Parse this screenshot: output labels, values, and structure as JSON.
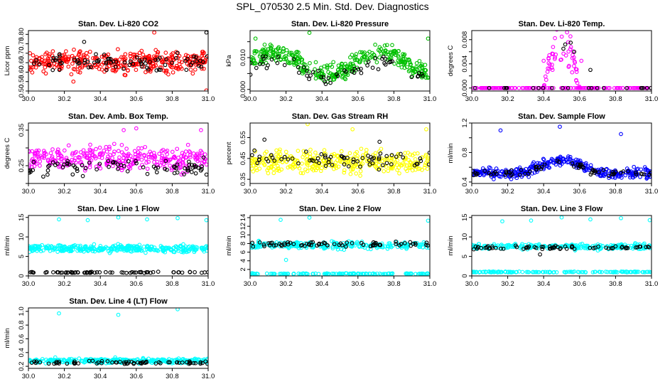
{
  "figure": {
    "title": "SPL_070530  2.5 Min. Std. Dev. Diagnostics",
    "colors": {
      "red": "#ff0000",
      "green": "#00c000",
      "magenta": "#ff00ff",
      "yellow": "#ffff00",
      "blue": "#0000ff",
      "cyan": "#00ffff",
      "black": "#000000"
    }
  },
  "chart_data": [
    {
      "id": "co2",
      "type": "scatter",
      "title": "Stan. Dev. Li-820 CO2",
      "ylabel": "Licor ppm",
      "xlim": [
        30.0,
        31.0
      ],
      "ylim": [
        0.5,
        0.82
      ],
      "xticks": [
        30.0,
        30.2,
        30.4,
        30.6,
        30.8,
        31.0
      ],
      "xtick_labels": [
        "30.0",
        "30.2",
        "30.4",
        "30.6",
        "30.8",
        "31.0"
      ],
      "yticks": [
        0.5,
        0.55,
        0.6,
        0.65,
        0.7,
        0.75,
        0.8
      ],
      "ytick_labels": [
        "0.50",
        "0.55",
        "0.60",
        "0.65",
        "0.70",
        "0.75",
        "0.80"
      ],
      "series": [
        {
          "name": "main",
          "color": "red",
          "n": 360,
          "level": 0.655,
          "spread": 0.048,
          "outliers": [
            [
              30.99,
              0.503
            ],
            [
              30.7,
              0.81
            ],
            [
              30.25,
              0.55
            ]
          ]
        },
        {
          "name": "highlight",
          "color": "black",
          "n": 80,
          "level": 0.655,
          "spread": 0.035,
          "outliers": [
            [
              30.99,
              0.81
            ],
            [
              30.31,
              0.76
            ]
          ]
        }
      ]
    },
    {
      "id": "pressure",
      "type": "scatter",
      "title": "Stan. Dev. Li-820 Pressure",
      "ylabel": "kPa",
      "xlim": [
        30.0,
        31.0
      ],
      "ylim": [
        -0.0005,
        0.0185
      ],
      "xticks": [
        30.0,
        30.2,
        30.4,
        30.6,
        30.8,
        31.0
      ],
      "xtick_labels": [
        "30.0",
        "30.2",
        "30.4",
        "30.6",
        "30.8",
        "31.0"
      ],
      "yticks": [
        0.0,
        0.005,
        0.01,
        0.015
      ],
      "ytick_labels": [
        "0.000",
        "",
        "0.010",
        ""
      ],
      "series": [
        {
          "name": "main",
          "color": "green",
          "n": 360,
          "wave": [
            0.008,
            0.006,
            0.0025
          ],
          "outliers": [
            [
              30.33,
              0.0178
            ],
            [
              30.99,
              0.016
            ],
            [
              30.03,
              0.016
            ]
          ]
        },
        {
          "name": "highlight",
          "color": "black",
          "n": 60,
          "wave": [
            0.006,
            0.005,
            0.002
          ],
          "outliers": []
        }
      ]
    },
    {
      "id": "temp",
      "type": "scatter",
      "title": "Stan. Dev. Li-820 Temp.",
      "ylabel": "degrees C",
      "xlim": [
        30.0,
        31.0
      ],
      "ylim": [
        -0.0005,
        0.0095
      ],
      "xticks": [
        30.0,
        30.2,
        30.4,
        30.6,
        30.8,
        31.0
      ],
      "xtick_labels": [
        "30.0",
        "30.2",
        "30.4",
        "30.6",
        "30.8",
        "31.0"
      ],
      "yticks": [
        0.0,
        0.002,
        0.004,
        0.006,
        0.008
      ],
      "ytick_labels": [
        "0.000",
        "",
        "0.004",
        "",
        "0.008"
      ],
      "series": [
        {
          "name": "baseline",
          "color": "magenta",
          "n": 150,
          "level": 0.0,
          "spread": 0.0,
          "outliers": []
        },
        {
          "name": "hump",
          "color": "magenta",
          "n": 60,
          "hump": [
            30.4,
            30.6,
            0.009
          ],
          "outliers": [
            [
              30.53,
              0.0092
            ],
            [
              30.4,
              0.0045
            ],
            [
              30.61,
              0.0045
            ]
          ]
        },
        {
          "name": "highlight",
          "color": "black",
          "n": 22,
          "level": 0.0,
          "spread": 0.0,
          "outliers": [
            [
              30.51,
              0.0065
            ],
            [
              30.52,
              0.0072
            ],
            [
              30.55,
              0.0075
            ],
            [
              30.57,
              0.006
            ],
            [
              30.66,
              0.003
            ]
          ]
        }
      ]
    },
    {
      "id": "ambbox",
      "type": "scatter",
      "title": "Stan. Dev. Amb. Box Temp.",
      "ylabel": "degrees C",
      "xlim": [
        30.0,
        31.0
      ],
      "ylim": [
        0.2,
        0.37
      ],
      "xticks": [
        30.0,
        30.2,
        30.4,
        30.6,
        30.8,
        31.0
      ],
      "xtick_labels": [
        "30.0",
        "30.2",
        "30.4",
        "30.6",
        "30.8",
        "31.0"
      ],
      "yticks": [
        0.2,
        0.25,
        0.3,
        0.35
      ],
      "ytick_labels": [
        "",
        "0.25",
        "",
        "0.35"
      ],
      "series": [
        {
          "name": "main",
          "color": "magenta",
          "n": 330,
          "level": 0.27,
          "spread": 0.03,
          "outliers": [
            [
              30.6,
              0.355
            ],
            [
              30.53,
              0.35
            ],
            [
              30.96,
              0.35
            ]
          ]
        },
        {
          "name": "highlight",
          "color": "black",
          "n": 80,
          "level": 0.245,
          "spread": 0.02,
          "outliers": []
        }
      ]
    },
    {
      "id": "rh",
      "type": "scatter",
      "title": "Stan. Dev. Gas Stream RH",
      "ylabel": "percent",
      "xlim": [
        30.0,
        31.0
      ],
      "ylim": [
        0.33,
        0.62
      ],
      "xticks": [
        30.0,
        30.2,
        30.4,
        30.6,
        30.8,
        31.0
      ],
      "xtick_labels": [
        "30.0",
        "30.2",
        "30.4",
        "30.6",
        "30.8",
        "31.0"
      ],
      "yticks": [
        0.35,
        0.45,
        0.55
      ],
      "ytick_labels": [
        "0.35",
        "0.45",
        "0.55"
      ],
      "series": [
        {
          "name": "main",
          "color": "yellow",
          "n": 340,
          "level": 0.435,
          "spread": 0.045,
          "outliers": [
            [
              30.32,
              0.615
            ],
            [
              30.98,
              0.59
            ],
            [
              30.57,
              0.59
            ]
          ]
        },
        {
          "name": "highlight",
          "color": "black",
          "n": 70,
          "level": 0.44,
          "spread": 0.035,
          "outliers": [
            [
              30.08,
              0.54
            ],
            [
              30.72,
              0.53
            ]
          ]
        }
      ]
    },
    {
      "id": "sample",
      "type": "scatter",
      "title": "Stan. Dev. Sample Flow",
      "ylabel": "ml/min",
      "xlim": [
        30.0,
        31.0
      ],
      "ylim": [
        0.38,
        1.2
      ],
      "xticks": [
        30.0,
        30.2,
        30.4,
        30.6,
        30.8,
        31.0
      ],
      "xtick_labels": [
        "30.0",
        "30.2",
        "30.4",
        "30.6",
        "30.8",
        "31.0"
      ],
      "yticks": [
        0.4,
        0.6,
        0.8,
        1.0,
        1.2
      ],
      "ytick_labels": [
        "0.4",
        "",
        "0.8",
        "",
        "1.2"
      ],
      "series": [
        {
          "name": "main",
          "color": "blue",
          "n": 330,
          "hump": [
            30.3,
            30.7,
            0.17
          ],
          "level": 0.52,
          "spread": 0.06,
          "outliers": [
            [
              30.16,
              1.1
            ],
            [
              30.49,
              1.15
            ],
            [
              30.83,
              1.05
            ]
          ]
        },
        {
          "name": "highlight",
          "color": "black",
          "n": 70,
          "hump": [
            30.3,
            30.7,
            0.14
          ],
          "level": 0.52,
          "spread": 0.04,
          "outliers": []
        }
      ]
    },
    {
      "id": "line1",
      "type": "scatter",
      "title": "Stan. Dev. Line 1 Flow",
      "ylabel": "ml/min",
      "xlim": [
        30.0,
        31.0
      ],
      "ylim": [
        0,
        15.5
      ],
      "xticks": [
        30.0,
        30.2,
        30.4,
        30.6,
        30.8,
        31.0
      ],
      "xtick_labels": [
        "30.0",
        "30.2",
        "30.4",
        "30.6",
        "30.8",
        "31.0"
      ],
      "yticks": [
        0,
        5,
        10,
        15
      ],
      "ytick_labels": [
        "0",
        "5",
        "10",
        "15"
      ],
      "series": [
        {
          "name": "main",
          "color": "cyan",
          "n": 330,
          "level": 7.0,
          "spread": 0.8,
          "outliers": [
            [
              30.17,
              14.5
            ],
            [
              30.33,
              14.3
            ],
            [
              30.5,
              15.0
            ],
            [
              30.66,
              14.5
            ],
            [
              30.83,
              14.8
            ],
            [
              30.99,
              14.3
            ]
          ]
        },
        {
          "name": "highlight",
          "color": "black",
          "n": 70,
          "level": 0.9,
          "spread": 0.12,
          "outliers": []
        }
      ]
    },
    {
      "id": "line2",
      "type": "scatter",
      "title": "Stan. Dev. Line 2 Flow",
      "ylabel": "ml/min",
      "xlim": [
        30.0,
        31.0
      ],
      "ylim": [
        0.5,
        14.5
      ],
      "xticks": [
        30.0,
        30.2,
        30.4,
        30.6,
        30.8,
        31.0
      ],
      "xtick_labels": [
        "30.0",
        "30.2",
        "30.4",
        "30.6",
        "30.8",
        "31.0"
      ],
      "yticks": [
        2,
        4,
        6,
        8,
        10,
        12,
        14
      ],
      "ytick_labels": [
        "2",
        "4",
        "6",
        "8",
        "10",
        "12",
        "14"
      ],
      "series": [
        {
          "name": "main",
          "color": "cyan",
          "n": 250,
          "level": 7.6,
          "spread": 0.7,
          "outliers": [
            [
              30.17,
              13.5
            ],
            [
              30.33,
              14.0
            ],
            [
              30.99,
              13.3
            ],
            [
              30.2,
              4.2
            ]
          ]
        },
        {
          "name": "base",
          "color": "cyan",
          "n": 130,
          "level": 1.0,
          "spread": 0.1,
          "outliers": []
        },
        {
          "name": "highlight",
          "color": "black",
          "n": 70,
          "level": 7.8,
          "spread": 0.5,
          "outliers": []
        }
      ]
    },
    {
      "id": "line3",
      "type": "scatter",
      "title": "Stan. Dev. Line 3 Flow",
      "ylabel": "ml/min",
      "xlim": [
        30.0,
        31.0
      ],
      "ylim": [
        0,
        15.5
      ],
      "xticks": [
        30.0,
        30.2,
        30.4,
        30.6,
        30.8,
        31.0
      ],
      "xtick_labels": [
        "30.0",
        "30.2",
        "30.4",
        "30.6",
        "30.8",
        "31.0"
      ],
      "yticks": [
        0,
        5,
        10,
        15
      ],
      "ytick_labels": [
        "0",
        "5",
        "10",
        "15"
      ],
      "series": [
        {
          "name": "main",
          "color": "cyan",
          "n": 250,
          "level": 7.5,
          "spread": 0.6,
          "outliers": [
            [
              30.17,
              14.0
            ],
            [
              30.33,
              14.2
            ],
            [
              30.5,
              15.0
            ],
            [
              30.66,
              14.5
            ],
            [
              30.83,
              14.8
            ],
            [
              30.99,
              14.3
            ]
          ]
        },
        {
          "name": "base",
          "color": "cyan",
          "n": 130,
          "level": 1.0,
          "spread": 0.1,
          "outliers": []
        },
        {
          "name": "highlight",
          "color": "black",
          "n": 70,
          "level": 7.3,
          "spread": 0.4,
          "outliers": [
            [
              30.38,
              5.5
            ]
          ]
        }
      ]
    },
    {
      "id": "line4",
      "type": "scatter",
      "title": "Stan. Dev. Line 4 (LT) Flow",
      "ylabel": "ml/min",
      "xlim": [
        30.0,
        31.0
      ],
      "ylim": [
        0.17,
        1.05
      ],
      "xticks": [
        30.0,
        30.2,
        30.4,
        30.6,
        30.8,
        31.0
      ],
      "xtick_labels": [
        "30.0",
        "30.2",
        "30.4",
        "30.6",
        "30.8",
        "31.0"
      ],
      "yticks": [
        0.2,
        0.4,
        0.6,
        0.8,
        1.0
      ],
      "ytick_labels": [
        "0.2",
        "0.4",
        "0.6",
        "0.8",
        "1.0"
      ],
      "series": [
        {
          "name": "main",
          "color": "cyan",
          "n": 330,
          "level": 0.28,
          "spread": 0.03,
          "outliers": [
            [
              30.17,
              0.97
            ],
            [
              30.5,
              0.95
            ],
            [
              30.83,
              1.03
            ]
          ]
        },
        {
          "name": "highlight",
          "color": "black",
          "n": 70,
          "level": 0.255,
          "spread": 0.02,
          "outliers": []
        }
      ]
    }
  ]
}
